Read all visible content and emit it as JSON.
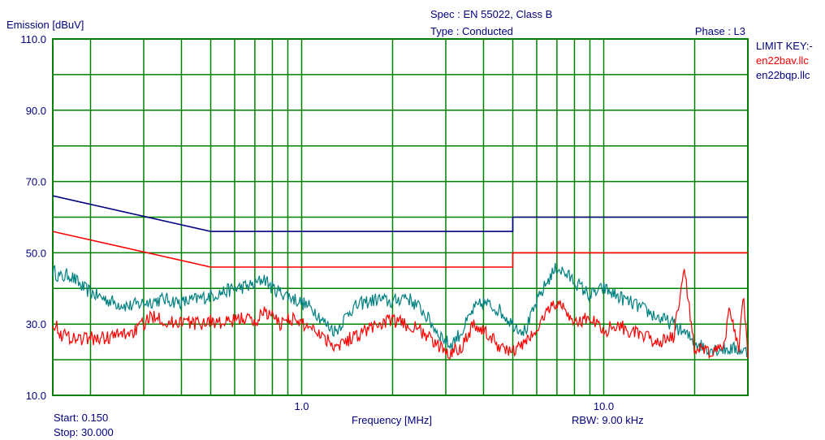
{
  "header": {
    "spec": "Spec : EN 55022, Class B",
    "type": "Type : Conducted",
    "phase": "Phase : L3",
    "ylabel": "Emission [dBuV]"
  },
  "limit_key": {
    "title": "LIMIT KEY:-",
    "entries": [
      {
        "name": "en22bav.llc",
        "color": "#ff0000"
      },
      {
        "name": "en22bqp.llc",
        "color": "#000080"
      }
    ]
  },
  "footer": {
    "start": "Start: 0.150",
    "stop": "Stop: 30.000",
    "xlabel": "Frequency [MHz]",
    "rbw": "RBW: 9.00 kHz"
  },
  "colors": {
    "grid": "#008000",
    "qp_limit": "#000080",
    "av_limit": "#ff0000",
    "trace_teal": "#008080",
    "trace_red": "#ff0000",
    "text": "#000080"
  },
  "chart_data": {
    "type": "line",
    "x_scale": "log",
    "xlim": [
      0.15,
      30
    ],
    "ylim": [
      10,
      110
    ],
    "xlabel": "Frequency [MHz]",
    "ylabel": "Emission [dBuV]",
    "y_ticks": [
      "110.0",
      "90.0",
      "70.0",
      "50.0",
      "30.0",
      "10.0"
    ],
    "x_ticks": [
      {
        "value": 1.0,
        "label": "1.0"
      },
      {
        "value": 10.0,
        "label": "10.0"
      }
    ],
    "grid": true,
    "limits": [
      {
        "name": "en22bqp.llc",
        "color": "#000080",
        "points": [
          [
            0.15,
            66
          ],
          [
            0.5,
            56
          ],
          [
            5,
            56
          ],
          [
            5,
            60
          ],
          [
            30,
            60
          ]
        ]
      },
      {
        "name": "en22bav.llc",
        "color": "#ff0000",
        "points": [
          [
            0.15,
            56
          ],
          [
            0.5,
            46
          ],
          [
            5,
            46
          ],
          [
            5,
            50
          ],
          [
            30,
            50
          ]
        ]
      }
    ],
    "series": [
      {
        "color": "#008080",
        "points": [
          [
            0.15,
            45
          ],
          [
            0.16,
            43
          ],
          [
            0.17,
            44
          ],
          [
            0.19,
            40
          ],
          [
            0.21,
            38
          ],
          [
            0.24,
            36
          ],
          [
            0.27,
            35
          ],
          [
            0.3,
            36
          ],
          [
            0.35,
            37
          ],
          [
            0.4,
            36
          ],
          [
            0.45,
            37
          ],
          [
            0.5,
            38
          ],
          [
            0.55,
            39
          ],
          [
            0.6,
            40
          ],
          [
            0.7,
            41
          ],
          [
            0.75,
            43
          ],
          [
            0.8,
            40
          ],
          [
            0.9,
            38
          ],
          [
            1.0,
            36
          ],
          [
            1.1,
            34
          ],
          [
            1.2,
            30
          ],
          [
            1.3,
            28
          ],
          [
            1.45,
            34
          ],
          [
            1.6,
            36
          ],
          [
            1.8,
            37
          ],
          [
            2.0,
            36
          ],
          [
            2.2,
            38
          ],
          [
            2.5,
            34
          ],
          [
            2.8,
            28
          ],
          [
            3.1,
            24
          ],
          [
            3.4,
            28
          ],
          [
            3.7,
            34
          ],
          [
            4.0,
            36
          ],
          [
            4.5,
            34
          ],
          [
            5.0,
            30
          ],
          [
            5.5,
            28
          ],
          [
            6.0,
            36
          ],
          [
            6.5,
            42
          ],
          [
            7.0,
            46
          ],
          [
            7.5,
            44
          ],
          [
            8.0,
            42
          ],
          [
            9.0,
            38
          ],
          [
            10.0,
            40
          ],
          [
            11.0,
            38
          ],
          [
            13.0,
            35
          ],
          [
            15.0,
            32
          ],
          [
            17.0,
            30
          ],
          [
            20.0,
            25
          ],
          [
            22.0,
            23
          ],
          [
            25.0,
            23
          ],
          [
            28.0,
            23
          ],
          [
            30.0,
            22
          ]
        ]
      },
      {
        "color": "#ff0000",
        "points": [
          [
            0.15,
            31
          ],
          [
            0.16,
            27
          ],
          [
            0.18,
            26
          ],
          [
            0.2,
            26
          ],
          [
            0.22,
            26
          ],
          [
            0.25,
            27
          ],
          [
            0.28,
            28
          ],
          [
            0.3,
            30
          ],
          [
            0.33,
            33
          ],
          [
            0.36,
            30
          ],
          [
            0.4,
            31
          ],
          [
            0.45,
            30
          ],
          [
            0.5,
            31
          ],
          [
            0.55,
            30
          ],
          [
            0.6,
            31
          ],
          [
            0.65,
            32
          ],
          [
            0.7,
            30
          ],
          [
            0.75,
            34
          ],
          [
            0.8,
            32
          ],
          [
            0.85,
            30
          ],
          [
            0.9,
            32
          ],
          [
            1.0,
            30
          ],
          [
            1.1,
            29
          ],
          [
            1.2,
            26
          ],
          [
            1.3,
            24
          ],
          [
            1.45,
            26
          ],
          [
            1.6,
            28
          ],
          [
            1.8,
            30
          ],
          [
            2.0,
            31
          ],
          [
            2.2,
            30
          ],
          [
            2.5,
            28
          ],
          [
            2.8,
            24
          ],
          [
            3.1,
            22
          ],
          [
            3.4,
            24
          ],
          [
            3.7,
            30
          ],
          [
            4.0,
            28
          ],
          [
            4.5,
            24
          ],
          [
            5.0,
            22
          ],
          [
            5.5,
            25
          ],
          [
            6.0,
            28
          ],
          [
            6.5,
            34
          ],
          [
            7.0,
            36
          ],
          [
            7.5,
            34
          ],
          [
            8.0,
            30
          ],
          [
            9.0,
            32
          ],
          [
            10.0,
            28
          ],
          [
            11.0,
            30
          ],
          [
            13.0,
            27
          ],
          [
            15.0,
            25
          ],
          [
            17.0,
            26
          ],
          [
            18.5,
            45
          ],
          [
            20.0,
            23
          ],
          [
            22.0,
            22
          ],
          [
            25.0,
            23
          ],
          [
            26.0,
            35
          ],
          [
            28.0,
            23
          ],
          [
            29.0,
            39
          ],
          [
            30.0,
            22
          ]
        ]
      }
    ]
  }
}
